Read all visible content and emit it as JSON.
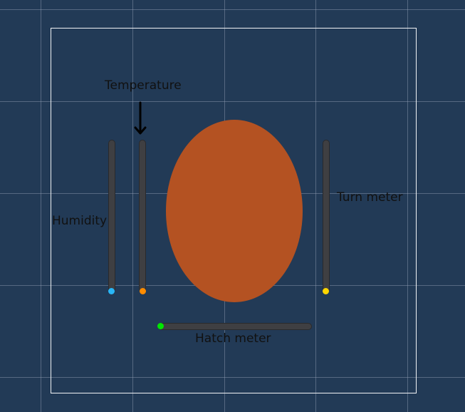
{
  "labels": {
    "temperature": "Temperature",
    "humidity": "Humidity",
    "turn_meter": "Turn meter",
    "hatch_meter": "Hatch meter"
  },
  "colors": {
    "background": "#223a56",
    "egg": "#b45222",
    "track": "#3f3f42",
    "humidity_dot": "#29b6f6",
    "temperature_dot": "#ff8c00",
    "turn_dot": "#ffd600",
    "hatch_dot": "#00e600"
  },
  "icons": {
    "temperature_pointer": "down-arrow-icon"
  }
}
